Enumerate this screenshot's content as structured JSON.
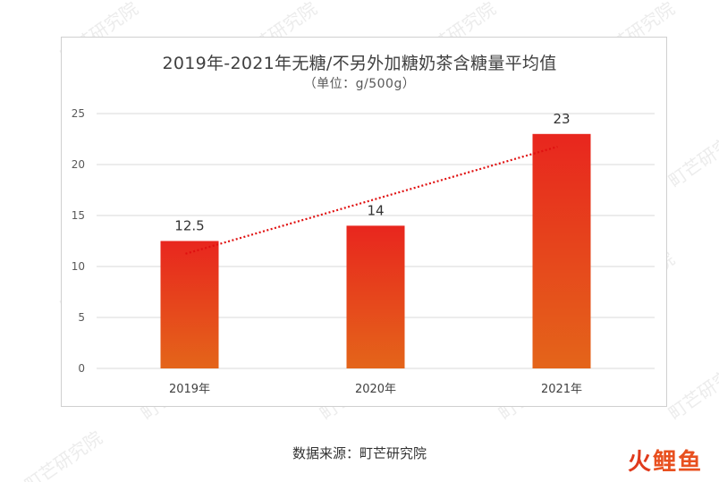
{
  "chart_data": {
    "type": "bar",
    "title": "2019年-2021年无糖/不另外加糖奶茶含糖量平均值",
    "subtitle": "（单位：g/500g）",
    "categories": [
      "2019年",
      "2020年",
      "2021年"
    ],
    "values": [
      12.5,
      14,
      23
    ],
    "data_labels": [
      "12.5",
      "14",
      "23"
    ],
    "ylim": [
      0,
      25
    ],
    "yticks": [
      "0",
      "5",
      "10",
      "15",
      "20",
      "25"
    ],
    "grid": true,
    "trendline": "linear",
    "colors": {
      "bar_top": "#e8261e",
      "bar_bottom": "#e4651a",
      "trendline": "#e01010",
      "grid": "#d9d9d9"
    }
  },
  "source": "数据来源：町芒研究院",
  "logo": {
    "part1": "火",
    "part2": "鲤鱼"
  },
  "watermark": "町芒研究院"
}
